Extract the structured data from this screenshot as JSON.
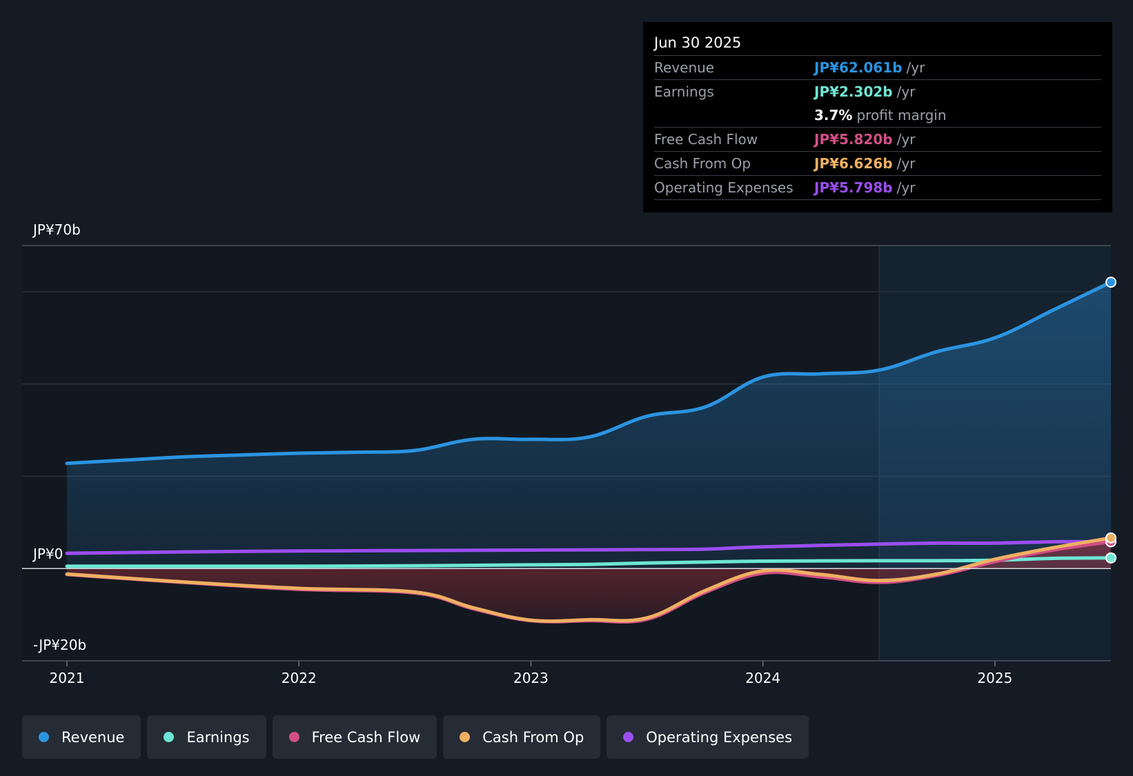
{
  "colors": {
    "background": "#151b24",
    "revenue": "#2b94e1",
    "earnings": "#6ee6d4",
    "free_cash_flow": "#d24f86",
    "cash_from_op": "#efb062",
    "operating_expenses": "#9b4ef0"
  },
  "tooltip": {
    "date": "Jun 30 2025",
    "rows": [
      {
        "label": "Revenue",
        "value": "JP¥62.061b",
        "unit": "/yr",
        "color": "#2b94e1"
      },
      {
        "label": "Earnings",
        "value": "JP¥2.302b",
        "unit": "/yr",
        "color": "#6ee6d4"
      },
      {
        "label": "",
        "value": "3.7%",
        "unit": "profit margin",
        "color": "#ffffff"
      },
      {
        "label": "Free Cash Flow",
        "value": "JP¥5.820b",
        "unit": "/yr",
        "color": "#d24f86"
      },
      {
        "label": "Cash From Op",
        "value": "JP¥6.626b",
        "unit": "/yr",
        "color": "#efb062"
      },
      {
        "label": "Operating Expenses",
        "value": "JP¥5.798b",
        "unit": "/yr",
        "color": "#9b4ef0"
      }
    ]
  },
  "legend": [
    {
      "label": "Revenue",
      "color": "#2b94e1",
      "icon": "circle-dot-icon"
    },
    {
      "label": "Earnings",
      "color": "#6ee6d4",
      "icon": "circle-dot-icon"
    },
    {
      "label": "Free Cash Flow",
      "color": "#d24f86",
      "icon": "circle-dot-icon"
    },
    {
      "label": "Cash From Op",
      "color": "#efb062",
      "icon": "circle-dot-icon"
    },
    {
      "label": "Operating Expenses",
      "color": "#9b4ef0",
      "icon": "circle-dot-icon"
    }
  ],
  "chart_data": {
    "type": "line",
    "title": "",
    "xlabel": "",
    "ylabel": "",
    "ylim": [
      -20,
      70
    ],
    "xlim": [
      2021.0,
      2025.5
    ],
    "y_tick_labels": [
      {
        "value": 70,
        "label": "JP¥70b"
      },
      {
        "value": 0,
        "label": "JP¥0"
      },
      {
        "value": -20,
        "label": "-JP¥20b"
      }
    ],
    "gridlines": [
      70,
      60,
      40,
      20
    ],
    "x_ticks": [
      {
        "value": 2021,
        "label": "2021"
      },
      {
        "value": 2022,
        "label": "2022"
      },
      {
        "value": 2023,
        "label": "2023"
      },
      {
        "value": 2024,
        "label": "2024"
      },
      {
        "value": 2025,
        "label": "2025"
      }
    ],
    "highlight_from": 2024.5,
    "series": [
      {
        "name": "Revenue",
        "key": "revenue",
        "color": "#2b94e1",
        "fill": true,
        "x": [
          2021.0,
          2021.25,
          2021.5,
          2021.75,
          2022.0,
          2022.25,
          2022.5,
          2022.75,
          2023.0,
          2023.25,
          2023.5,
          2023.75,
          2024.0,
          2024.25,
          2024.5,
          2024.75,
          2025.0,
          2025.25,
          2025.5
        ],
        "values": [
          22.8,
          23.5,
          24.2,
          24.6,
          25.0,
          25.2,
          25.6,
          28.0,
          28.0,
          28.5,
          33.0,
          35.0,
          41.5,
          42.2,
          43.0,
          47.0,
          50.0,
          56.0,
          62.06
        ]
      },
      {
        "name": "Operating Expenses",
        "key": "operating_expenses",
        "color": "#9b4ef0",
        "fill": false,
        "x": [
          2021.0,
          2021.5,
          2022.0,
          2022.5,
          2023.0,
          2023.5,
          2023.75,
          2024.0,
          2024.5,
          2024.75,
          2025.0,
          2025.25,
          2025.5
        ],
        "values": [
          3.3,
          3.6,
          3.8,
          3.9,
          4.0,
          4.1,
          4.2,
          4.7,
          5.3,
          5.5,
          5.5,
          5.8,
          5.8
        ]
      },
      {
        "name": "Earnings",
        "key": "earnings",
        "color": "#6ee6d4",
        "fill": false,
        "x": [
          2021.0,
          2021.5,
          2022.0,
          2022.5,
          2023.0,
          2023.25,
          2023.5,
          2023.75,
          2024.0,
          2024.5,
          2024.75,
          2025.0,
          2025.25,
          2025.5
        ],
        "values": [
          0.5,
          0.5,
          0.5,
          0.6,
          0.8,
          0.9,
          1.2,
          1.4,
          1.6,
          1.7,
          1.7,
          1.8,
          2.2,
          2.3
        ]
      },
      {
        "name": "Free Cash Flow",
        "key": "free_cash_flow",
        "color": "#d24f86",
        "fill": true,
        "x": [
          2021.0,
          2021.5,
          2022.0,
          2022.5,
          2022.75,
          2023.0,
          2023.25,
          2023.5,
          2023.75,
          2024.0,
          2024.25,
          2024.5,
          2024.75,
          2025.0,
          2025.25,
          2025.5
        ],
        "values": [
          -1.3,
          -3.0,
          -4.5,
          -5.3,
          -8.7,
          -11.3,
          -11.3,
          -11.0,
          -5.2,
          -1.0,
          -1.8,
          -3.0,
          -1.5,
          1.5,
          4.0,
          5.82
        ]
      },
      {
        "name": "Cash From Op",
        "key": "cash_from_op",
        "color": "#efb062",
        "fill": false,
        "x": [
          2021.0,
          2021.5,
          2022.0,
          2022.5,
          2022.75,
          2023.0,
          2023.25,
          2023.5,
          2023.75,
          2024.0,
          2024.25,
          2024.5,
          2024.75,
          2025.0,
          2025.25,
          2025.5
        ],
        "values": [
          -1.2,
          -2.9,
          -4.3,
          -5.1,
          -8.5,
          -11.2,
          -11.1,
          -10.7,
          -4.8,
          -0.5,
          -1.3,
          -2.6,
          -1.2,
          2.0,
          4.5,
          6.63
        ]
      }
    ]
  }
}
